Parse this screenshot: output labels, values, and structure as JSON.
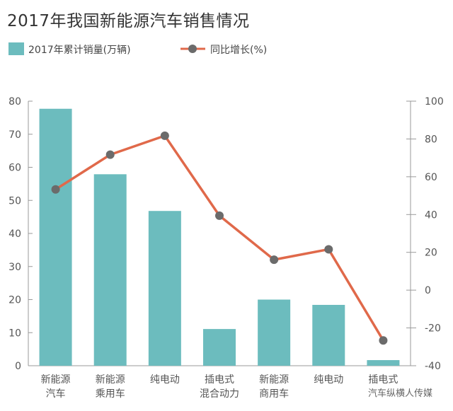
{
  "title": "2017年我国新能源汽车销售情况",
  "colors": {
    "bar": "#6cbcbe",
    "line": "#e0694a",
    "marker": "#6b6b6b",
    "axis": "#999999"
  },
  "watermark": "汽车纵横人传媒",
  "chart_data": {
    "type": "bar",
    "title": "2017年我国新能源汽车销售情况",
    "categories": [
      [
        "新能源",
        "汽车"
      ],
      [
        "新能源",
        "乘用车"
      ],
      [
        "纯电动"
      ],
      [
        "插电式",
        "混合动力"
      ],
      [
        "新能源",
        "商用车"
      ],
      [
        "纯电动"
      ],
      [
        "插电式"
      ]
    ],
    "series": [
      {
        "name": "2017年累计销量(万辆)",
        "type": "bar",
        "axis": "left",
        "values": [
          77.7,
          57.9,
          46.8,
          11.1,
          20.0,
          18.4,
          1.7
        ]
      },
      {
        "name": "同比增长(%)",
        "type": "line",
        "axis": "right",
        "values": [
          53.3,
          71.7,
          81.7,
          39.4,
          16.1,
          21.6,
          -26.6
        ]
      }
    ],
    "y_left": {
      "ylim": [
        0,
        80
      ],
      "ticks": [
        0,
        10,
        20,
        30,
        40,
        50,
        60,
        70,
        80
      ]
    },
    "y_right": {
      "ylim": [
        -40,
        100
      ],
      "ticks": [
        -40,
        -20,
        0,
        20,
        40,
        60,
        80,
        100
      ]
    },
    "legend": "top-left",
    "grid": false
  }
}
